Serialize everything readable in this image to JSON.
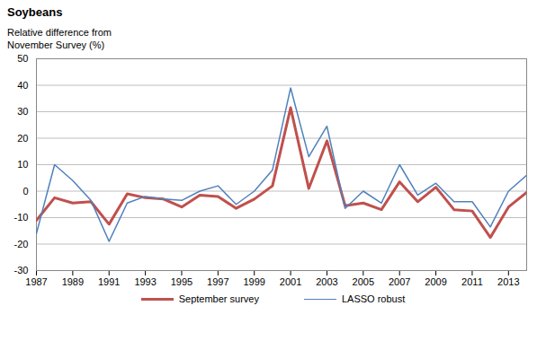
{
  "chart_data": {
    "type": "line",
    "title": "Soybeans",
    "subtitle": "Relative difference from November Survey (%)",
    "x": [
      1987,
      1988,
      1989,
      1990,
      1991,
      1992,
      1993,
      1994,
      1995,
      1996,
      1997,
      1998,
      1999,
      2000,
      2001,
      2002,
      2003,
      2004,
      2005,
      2006,
      2007,
      2008,
      2009,
      2010,
      2011,
      2012,
      2013,
      2014
    ],
    "series": [
      {
        "name": "September survey",
        "color": "#c0504d",
        "values": [
          -11,
          -2.5,
          -4.5,
          -4,
          -12.5,
          -1,
          -2.5,
          -3,
          -6,
          -1.5,
          -2,
          -6.5,
          -3,
          2,
          31.5,
          1,
          19,
          -5.5,
          -4.5,
          -7,
          3.5,
          -4,
          1.5,
          -7,
          -7.5,
          -17.5,
          -6,
          -0.5
        ]
      },
      {
        "name": "LASSO robust",
        "color": "#4f81bd",
        "values": [
          -16,
          10,
          4,
          -3.5,
          -19,
          -4.5,
          -2,
          -3,
          -3.5,
          0,
          2,
          -5,
          0,
          8,
          39,
          13,
          24.5,
          -6.5,
          0,
          -4.5,
          10,
          -1.5,
          3,
          -4,
          -4,
          -13.5,
          0,
          6
        ]
      }
    ],
    "xlim": [
      1987,
      2014
    ],
    "xticks": [
      1987,
      1989,
      1991,
      1993,
      1995,
      1997,
      1999,
      2001,
      2003,
      2005,
      2007,
      2009,
      2011,
      2013
    ],
    "ylim": [
      -30,
      50
    ],
    "yticks": [
      -30,
      -20,
      -10,
      0,
      10,
      20,
      30,
      40,
      50
    ],
    "grid": true,
    "legend": "bottom"
  }
}
